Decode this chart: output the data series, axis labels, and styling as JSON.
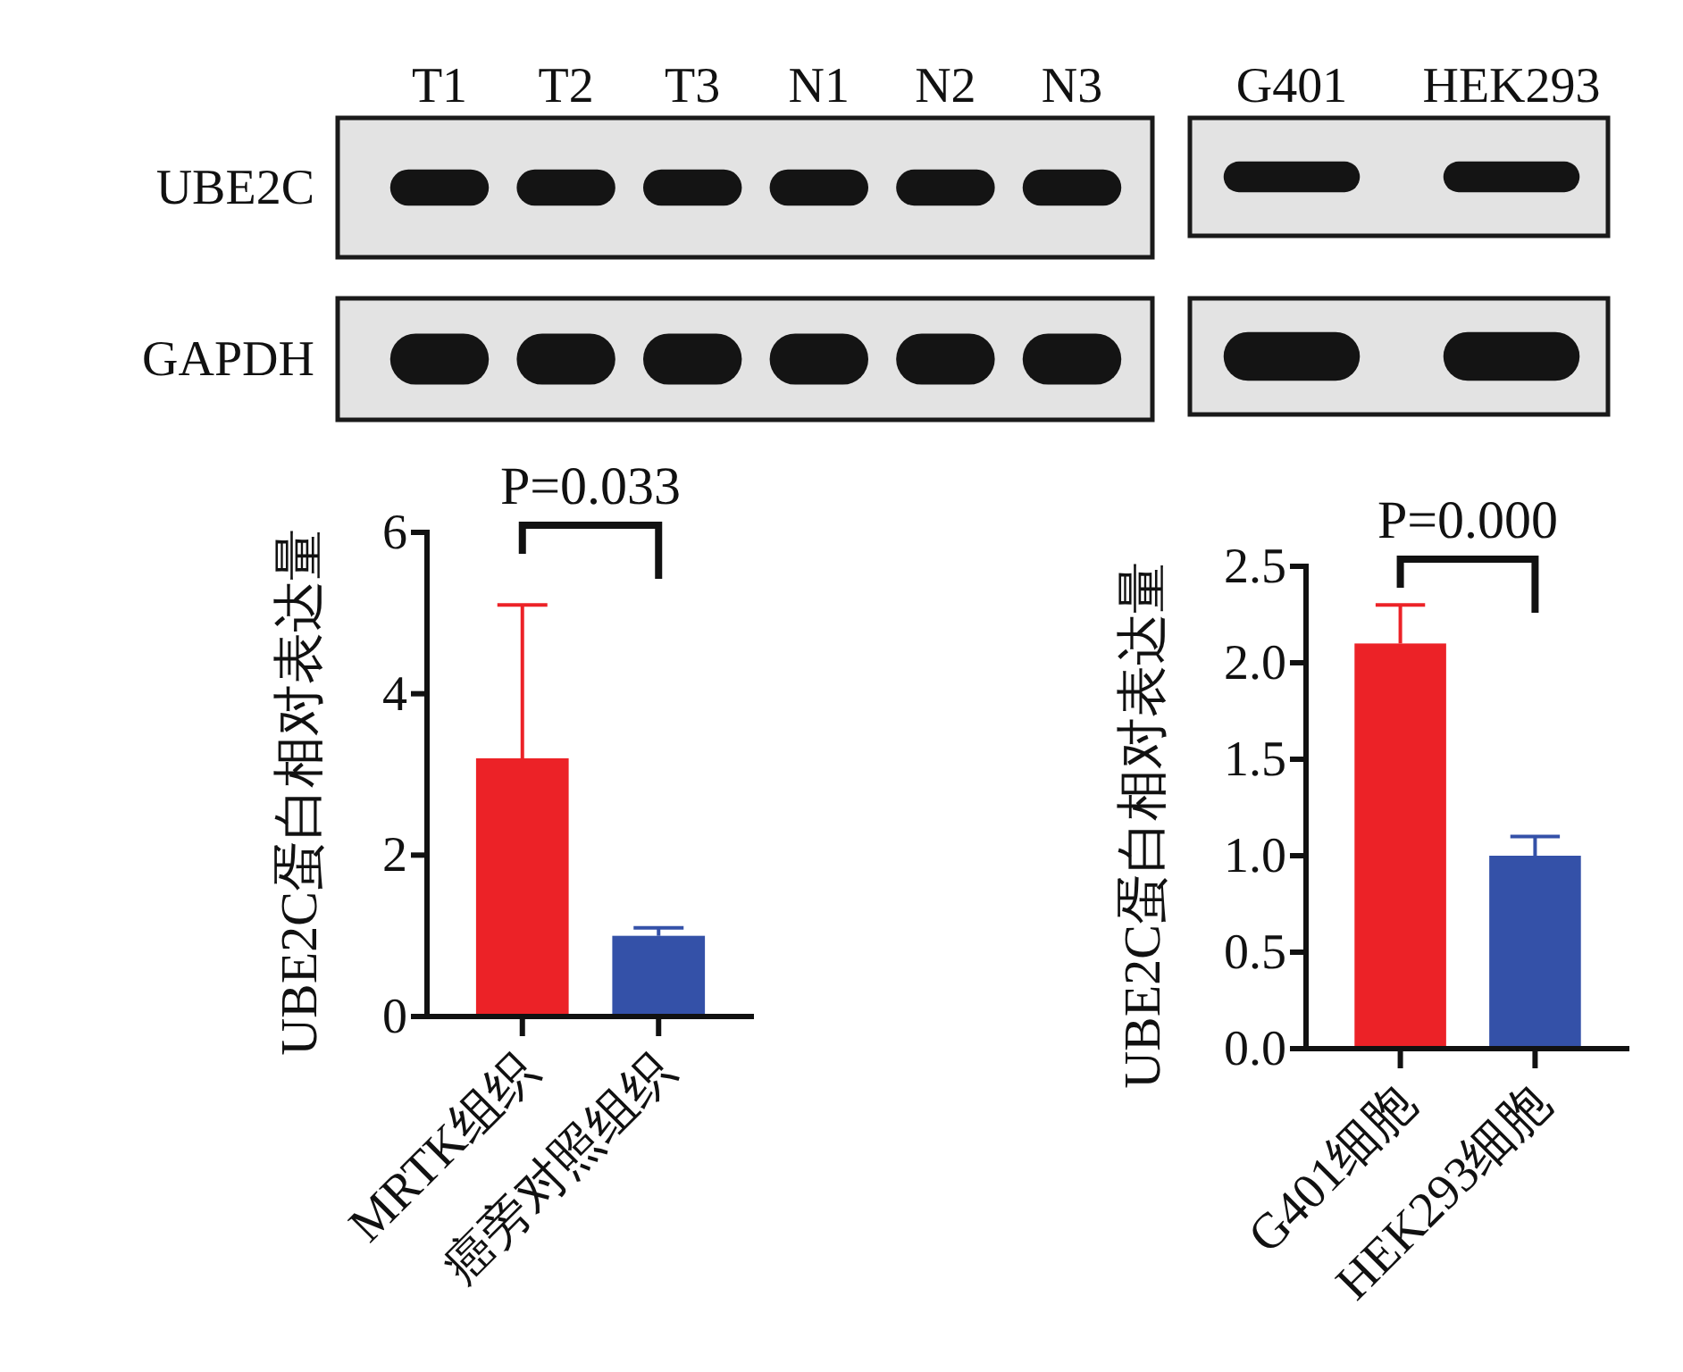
{
  "chart_data": [
    {
      "type": "other",
      "categories": [
        "T1",
        "T2",
        "T3",
        "N1",
        "N2",
        "N3"
      ],
      "y_categories": [
        "UBE2C",
        "GAPDH"
      ]
    },
    {
      "type": "other",
      "categories": [
        "G401",
        "HEK293"
      ],
      "y_categories": [
        null,
        null
      ]
    },
    {
      "type": "bar",
      "categories": [
        "MRTK组织",
        "癌旁对照组织"
      ],
      "values": [
        3.2,
        1.0
      ],
      "colors": [
        "#ec2227",
        "#3451a8"
      ],
      "errors": [
        [
          3.2,
          5.1
        ],
        [
          1.0,
          1.1
        ]
      ],
      "ylabel": "UBE2C蛋白相对表达量",
      "ylim": [
        0,
        6
      ],
      "yticks": [
        0,
        2,
        4,
        6
      ],
      "annotations": [
        "P=0.033"
      ]
    },
    {
      "type": "bar",
      "categories": [
        "G401细胞",
        "HEK293细胞"
      ],
      "values": [
        2.1,
        1.0
      ],
      "colors": [
        "#ec2227",
        "#3451a8"
      ],
      "errors": [
        [
          2.1,
          2.3
        ],
        [
          1.0,
          1.1
        ]
      ],
      "ylabel": "UBE2C蛋白相对表达量",
      "ylim": [
        0,
        2.5
      ],
      "yticks": [
        {
          "value": 0,
          "label": "0.0"
        },
        0.5,
        {
          "value": 1,
          "label": "1.0"
        },
        1.5,
        {
          "value": 2,
          "label": "2.0"
        },
        2.5
      ],
      "annotations": [
        "P=0.000"
      ]
    }
  ]
}
